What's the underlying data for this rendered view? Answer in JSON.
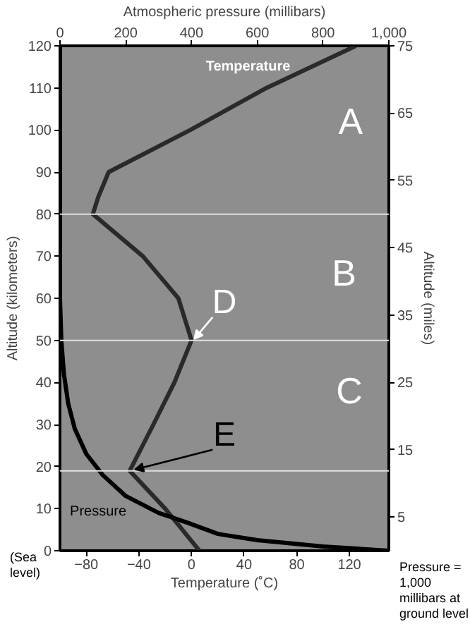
{
  "chart_data": {
    "type": "line",
    "xlabel": "Temperature (˚C)",
    "x2label": "Atmospheric pressure (millibars)",
    "ylabel": "Altitude (kilometers)",
    "y2label": "Altitude (miles)",
    "xlim": [
      -100,
      150
    ],
    "xticks": [
      -80,
      -40,
      0,
      40,
      80,
      120
    ],
    "x2lim": [
      0,
      1000
    ],
    "x2ticks": [
      0,
      200,
      400,
      600,
      800,
      {
        "value": 1000,
        "label": "1,000"
      }
    ],
    "ylim": [
      0,
      120
    ],
    "yticks": [
      0,
      10,
      20,
      30,
      40,
      50,
      60,
      70,
      80,
      90,
      100,
      110,
      120
    ],
    "y2lim": [
      0,
      75
    ],
    "y2ticks": [
      5,
      15,
      25,
      35,
      45,
      55,
      65,
      75
    ],
    "series": [
      {
        "name": "Temperature",
        "color": "#2a2a2a",
        "x": [
          6,
          -20,
          -47,
          -29,
          -13,
          0,
          -10,
          -37,
          -75,
          -71,
          -63,
          -1,
          57,
          125
        ],
        "values": [
          0,
          10,
          19,
          30,
          40,
          50,
          60,
          70,
          80,
          84,
          90,
          100,
          110,
          120
        ]
      },
      {
        "name": "Pressure",
        "axis": "x2",
        "color": "#000000",
        "x": [
          1000,
          800,
          600,
          480,
          390,
          300,
          200,
          130,
          80,
          45,
          25,
          12,
          4,
          0,
          0
        ],
        "values": [
          0,
          1,
          2.5,
          4,
          6.6,
          9,
          13,
          18,
          23,
          29,
          35,
          42,
          50,
          60,
          120
        ]
      }
    ],
    "ref_lines": [
      {
        "axis": "y",
        "value": 80,
        "color": "#e0e0e0"
      },
      {
        "axis": "y",
        "value": 50,
        "color": "#e0e0e0"
      },
      {
        "axis": "y",
        "value": 19,
        "color": "#e0e0e0"
      }
    ],
    "annotations": [
      "A",
      "B",
      "C",
      {
        "text": "D",
        "x": 0,
        "y": 50
      },
      {
        "text": "E",
        "x": -45,
        "y": 19
      },
      "(Sea\nlevel)",
      "Pressure =\n1,000\nmillibars at\nground level"
    ],
    "grid": false,
    "marker": "none",
    "line_style": "solid"
  }
}
